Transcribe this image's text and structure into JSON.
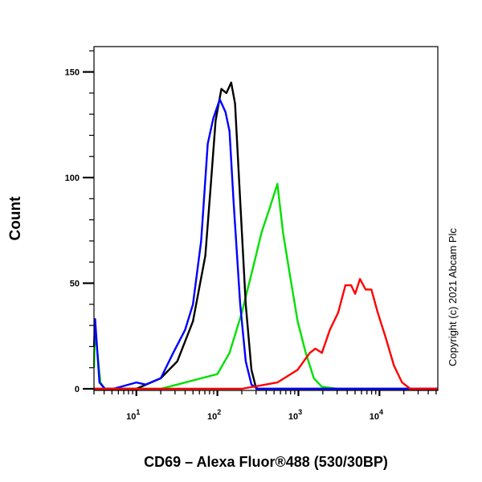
{
  "chart_data": {
    "type": "line",
    "title": "",
    "xlabel": "CD69 – Alexa Fluor®488 (530/30BP)",
    "ylabel": "Count",
    "xscale": "log",
    "xlim": [
      3,
      52500
    ],
    "ylim": [
      0,
      162
    ],
    "x_tick_labels": [
      {
        "base": "10",
        "exp": "1",
        "value": 10
      },
      {
        "base": "10",
        "exp": "2",
        "value": 100
      },
      {
        "base": "10",
        "exp": "3",
        "value": 1000
      },
      {
        "base": "10",
        "exp": "4",
        "value": 10000
      }
    ],
    "y_ticks": [
      0,
      50,
      100,
      150
    ],
    "grid": false,
    "annotation": "Copyright (c) 2021 Abcam Plc",
    "series": [
      {
        "name": "green",
        "color": "#00e000",
        "x": [
          3.0,
          3.1,
          3.6,
          4.1,
          10,
          20,
          32,
          63,
          100,
          141,
          200,
          282,
          351,
          437,
          550,
          646,
          776,
          977,
          1230,
          1550,
          1950,
          3000,
          52500
        ],
        "y": [
          10,
          28,
          3,
          0,
          0,
          0,
          2,
          5,
          7,
          17,
          36,
          59,
          74,
          85,
          97,
          74,
          55,
          32,
          17,
          5,
          1,
          0,
          0
        ]
      },
      {
        "name": "black",
        "color": "#000000",
        "x": [
          3.0,
          3.3,
          10,
          20,
          32,
          50,
          71,
          83,
          95,
          112,
          129,
          148,
          165,
          191,
          224,
          263,
          302,
          52500
        ],
        "y": [
          0,
          0,
          0,
          5,
          13,
          32,
          63,
          97,
          127,
          142,
          140,
          145,
          135,
          89,
          40,
          9,
          0,
          0
        ]
      },
      {
        "name": "blue",
        "color": "#0000ff",
        "x": [
          3.0,
          3.1,
          3.5,
          4.1,
          5.2,
          10,
          13,
          20,
          28.5,
          40,
          50,
          63,
          76,
          89,
          107,
          126,
          141,
          158,
          191,
          224,
          263,
          316,
          52500
        ],
        "y": [
          20,
          33,
          3,
          0,
          0,
          3,
          2,
          5,
          17,
          28,
          40,
          70,
          116,
          128,
          137,
          131,
          122,
          89,
          40,
          13,
          2,
          0,
          0
        ]
      },
      {
        "name": "red",
        "color": "#ff0000",
        "x": [
          3.0,
          200,
          550,
          977,
          1380,
          1620,
          1950,
          2450,
          3090,
          3800,
          4470,
          5010,
          5750,
          6760,
          7940,
          9550,
          12000,
          15100,
          19000,
          24000,
          52500
        ],
        "y": [
          0,
          0,
          3,
          9,
          17,
          19,
          17,
          28,
          36,
          49,
          49,
          45,
          52,
          47,
          47,
          36,
          24,
          11,
          3,
          0,
          0
        ]
      }
    ]
  }
}
